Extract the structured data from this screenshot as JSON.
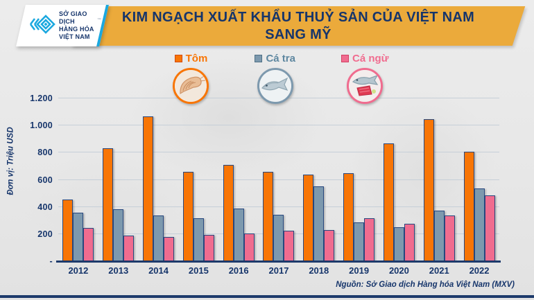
{
  "header": {
    "logo": {
      "lines": [
        "SỞ GIAO DỊCH",
        "HÀNG HÓA",
        "VIỆT NAM"
      ],
      "tm": "™",
      "accent_color": "#1BA8DF"
    },
    "title_line1": "KIM NGẠCH XUẤT KHẨU THUỶ SẢN CỦA VIỆT NAM",
    "title_line2": "SANG MỸ",
    "banner_color": "#EBAA3B",
    "text_color": "#16356B"
  },
  "legend": {
    "items": [
      {
        "label": "Tôm",
        "fill": "#F87505",
        "dark": "#D24A05",
        "text": "#F87505",
        "icon": "shrimp-icon"
      },
      {
        "label": "Cá tra",
        "fill": "#7D99AE",
        "dark": "#4E7085",
        "text": "#5E87A0",
        "icon": "pangasius-icon"
      },
      {
        "label": "Cá ngừ",
        "fill": "#F06C8F",
        "dark": "#D23F63",
        "text": "#F06C8F",
        "icon": "tuna-icon"
      }
    ]
  },
  "axis": {
    "unit_label": "Đơn vị: Triệu USD",
    "ytick_labels": [
      "1.200",
      "1.000",
      "800",
      "600",
      "400",
      "200",
      "-"
    ]
  },
  "footer": {
    "source": "Nguồn: Sở Giao dịch Hàng hóa Việt Nam (MXV)"
  },
  "chart_data": {
    "type": "bar",
    "title": "KIM NGẠCH XUẤT KHẨU THUỶ SẢN CỦA VIỆT NAM SANG MỸ",
    "ylabel": "Đơn vị: Triệu USD",
    "categories": [
      "2012",
      "2013",
      "2014",
      "2015",
      "2016",
      "2017",
      "2018",
      "2019",
      "2020",
      "2021",
      "2022"
    ],
    "series": [
      {
        "name": "Tôm",
        "color": "#F87505",
        "values": [
          455,
          831,
          1066,
          657,
          709,
          659,
          638,
          647,
          870,
          1045,
          807
        ]
      },
      {
        "name": "Cá tra",
        "color": "#7D99AE",
        "values": [
          359,
          381,
          337,
          315,
          387,
          344,
          550,
          288,
          248,
          371,
          537
        ]
      },
      {
        "name": "Cá ngừ",
        "color": "#F06C8F",
        "values": [
          244,
          187,
          178,
          194,
          202,
          226,
          230,
          316,
          275,
          338,
          487
        ]
      }
    ],
    "ylim": [
      0,
      1200
    ],
    "yticks": [
      0,
      200,
      400,
      600,
      800,
      1000,
      1200
    ],
    "grid": true,
    "legend_position": "top",
    "bar_border_color": "#27477E"
  }
}
